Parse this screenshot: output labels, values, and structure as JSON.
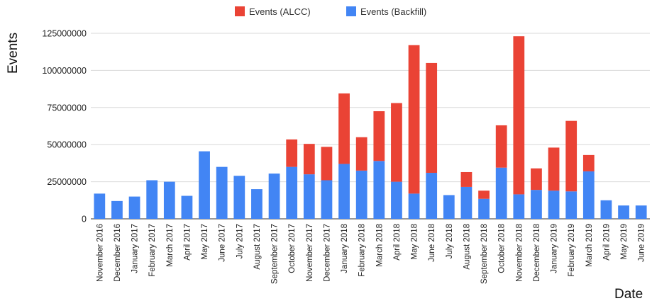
{
  "chart_data": {
    "type": "bar",
    "stacked": true,
    "xlabel": "Date",
    "ylabel": "Events",
    "ylim": [
      0,
      125000000
    ],
    "yticks": [
      0,
      25000000,
      50000000,
      75000000,
      100000000,
      125000000
    ],
    "ytick_labels": [
      "0",
      "25000000",
      "50000000",
      "75000000",
      "100000000",
      "125000000"
    ],
    "grid": true,
    "legend_position": "top-center",
    "categories": [
      "November 2016",
      "December 2016",
      "January 2017",
      "February 2017",
      "March 2017",
      "April 2017",
      "May 2017",
      "June 2017",
      "July 2017",
      "August 2017",
      "September 2017",
      "October 2017",
      "November 2017",
      "December 2017",
      "January 2018",
      "February 2018",
      "March 2018",
      "April 2018",
      "May 2018",
      "June 2018",
      "July 2018",
      "August 2018",
      "September 2018",
      "October 2018",
      "November 2018",
      "December 2018",
      "January 2019",
      "February 2019",
      "March 2019",
      "April 2019",
      "May 2019",
      "June 2019"
    ],
    "series": [
      {
        "name": "Events (Backfill)",
        "color": "#4285f4",
        "values": [
          17000000,
          12000000,
          15000000,
          26000000,
          25000000,
          15500000,
          45500000,
          35000000,
          29000000,
          20000000,
          30500000,
          35000000,
          30000000,
          26000000,
          37000000,
          32500000,
          39000000,
          25000000,
          17000000,
          31000000,
          16000000,
          21500000,
          13500000,
          34500000,
          16500000,
          19500000,
          19000000,
          18500000,
          32000000,
          12500000,
          9000000,
          9000000
        ]
      },
      {
        "name": "Events (ALCC)",
        "color": "#ea4335",
        "values": [
          0,
          0,
          0,
          0,
          0,
          0,
          0,
          0,
          0,
          0,
          0,
          18500000,
          20500000,
          22500000,
          47500000,
          22500000,
          33500000,
          53000000,
          100000000,
          74000000,
          0,
          10000000,
          5500000,
          28500000,
          106500000,
          14500000,
          29000000,
          47500000,
          11000000,
          0,
          0,
          0
        ]
      }
    ]
  }
}
